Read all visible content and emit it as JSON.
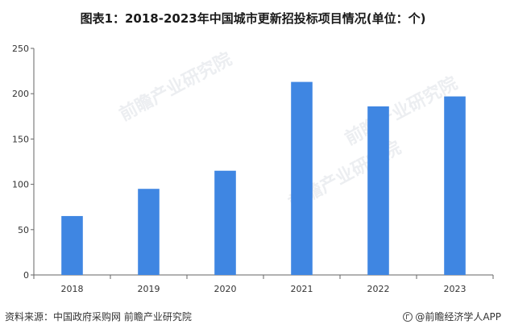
{
  "title": "图表1：2018-2023年中国城市更新招投标项目情况(单位：个)",
  "source": "资料来源：中国政府采购网 前瞻产业研究院",
  "brand": "@前瞻经济学人APP",
  "watermark": "前瞻产业研究院",
  "colors": {
    "bar": "#3f86e2",
    "axis": "#666666",
    "text": "#333333"
  },
  "chart_data": {
    "type": "bar",
    "categories": [
      "2018",
      "2019",
      "2020",
      "2021",
      "2022",
      "2023"
    ],
    "values": [
      65,
      95,
      115,
      213,
      186,
      197
    ],
    "ylim": [
      0,
      250
    ],
    "yticks": [
      0,
      50,
      100,
      150,
      200,
      250
    ],
    "grid": false,
    "legend": "none"
  }
}
